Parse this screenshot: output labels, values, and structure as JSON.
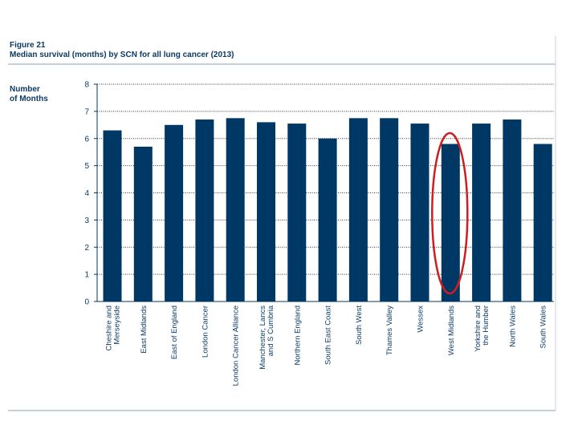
{
  "figure_label": "Figure 21",
  "subtitle": "Median survival (months) by SCN for all lung cancer (2013)",
  "chart_data": {
    "type": "bar",
    "title": "Figure 21",
    "subtitle": "Median survival (months) by SCN for all lung cancer (2013)",
    "ylabel_lines": [
      "Number",
      "of Months"
    ],
    "xlabel": "",
    "ylim": [
      0,
      8
    ],
    "yticks": [
      "0",
      "1",
      "2",
      "3",
      "4",
      "5",
      "6",
      "7",
      "8"
    ],
    "grid": true,
    "bar_color": "#003865",
    "highlight_color": "#cc1f1f",
    "highlight_category": "West Midlands",
    "categories": [
      [
        "Cheshire and",
        "Merseyside"
      ],
      [
        "East Midlands"
      ],
      [
        "East of England"
      ],
      [
        "London Cancer"
      ],
      [
        "London Cancer Alliance"
      ],
      [
        "Manchester, Lancs",
        "and S Cumbria"
      ],
      [
        "Northern England"
      ],
      [
        "South East Coast"
      ],
      [
        "South West"
      ],
      [
        "Thames Valley"
      ],
      [
        "Wessex"
      ],
      [
        "West Midlands"
      ],
      [
        "Yorkshire and",
        "the Humber"
      ],
      [
        "North Wales"
      ],
      [
        "South Wales"
      ]
    ],
    "values": [
      6.3,
      5.7,
      6.5,
      6.7,
      6.75,
      6.6,
      6.55,
      6.0,
      6.75,
      6.75,
      6.55,
      5.8,
      6.55,
      6.7,
      5.8
    ]
  }
}
